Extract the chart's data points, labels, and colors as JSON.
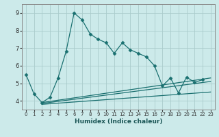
{
  "xlabel": "Humidex (Indice chaleur)",
  "background_color": "#cceaea",
  "grid_color": "#aacccc",
  "line_color": "#1a7070",
  "xlim": [
    -0.5,
    23.5
  ],
  "ylim": [
    3.5,
    9.5
  ],
  "xticks": [
    0,
    1,
    2,
    3,
    4,
    5,
    6,
    7,
    8,
    9,
    10,
    11,
    12,
    13,
    14,
    15,
    16,
    17,
    18,
    19,
    20,
    21,
    22,
    23
  ],
  "yticks": [
    4,
    5,
    6,
    7,
    8,
    9
  ],
  "line1_x": [
    0,
    1,
    2,
    3,
    4,
    5,
    6,
    7,
    8,
    9,
    10,
    11,
    12,
    13,
    14,
    15,
    16,
    17,
    18,
    19,
    20,
    21,
    22
  ],
  "line1_y": [
    5.5,
    4.4,
    3.9,
    4.2,
    5.3,
    6.8,
    9.0,
    8.6,
    7.8,
    7.5,
    7.3,
    6.7,
    7.3,
    6.9,
    6.7,
    6.5,
    6.0,
    4.85,
    5.3,
    4.45,
    5.35,
    5.05,
    5.2
  ],
  "line2_x": [
    2,
    23
  ],
  "line2_y": [
    3.9,
    5.3
  ],
  "line3_x": [
    2,
    23
  ],
  "line3_y": [
    3.85,
    5.1
  ],
  "line4_x": [
    2,
    23
  ],
  "line4_y": [
    3.8,
    4.5
  ]
}
